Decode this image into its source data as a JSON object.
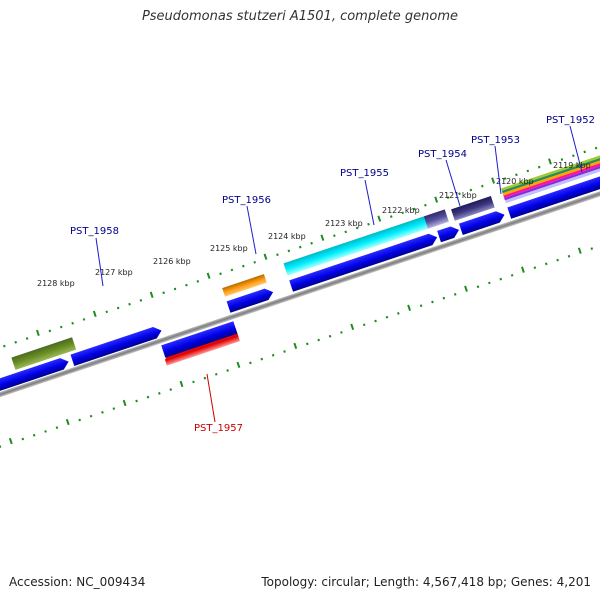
{
  "title": "Pseudomonas stutzeri A1501, complete genome",
  "footer": {
    "accession": "Accession: NC_009434",
    "summary": "Topology: circular; Length: 4,567,418 bp; Genes: 4,201"
  },
  "tick_labels": [
    "2128 kbp",
    "2127 kbp",
    "2126 kbp",
    "2125 kbp",
    "2124 kbp",
    "2123 kbp",
    "2122 kbp",
    "2121 kbp",
    "2120 kbp",
    "2119 kbp"
  ],
  "gene_labels": [
    {
      "name": "PST_1958",
      "color": "#00008b"
    },
    {
      "name": "PST_1957",
      "color": "#cc0000"
    },
    {
      "name": "PST_1956",
      "color": "#00008b"
    },
    {
      "name": "PST_1955",
      "color": "#00008b"
    },
    {
      "name": "PST_1954",
      "color": "#00008b"
    },
    {
      "name": "PST_1953",
      "color": "#00008b"
    },
    {
      "name": "PST_1952",
      "color": "#00008b"
    }
  ],
  "colors": {
    "backbone": "#8a8a8a",
    "cds": "#0000e6",
    "ticks": "#1e8c1e",
    "label_line_forward": "#1c1ccc",
    "label_line_reverse": "#cc0000"
  }
}
